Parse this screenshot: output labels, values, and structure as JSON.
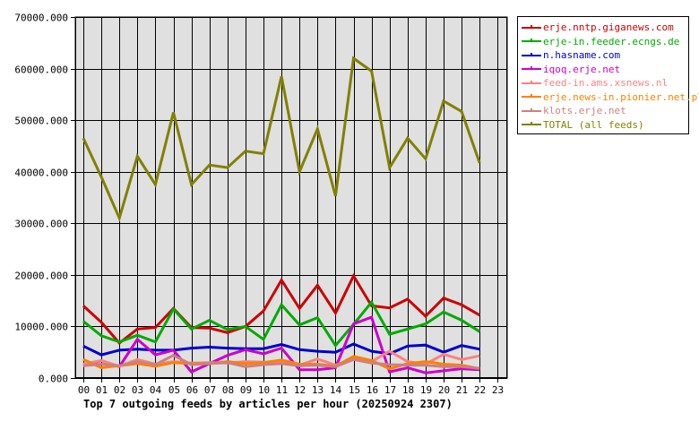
{
  "chart_data": {
    "type": "line",
    "title": "Top 7 outgoing feeds by articles per hour (20250924 2307)",
    "xlabel": "",
    "ylabel": "",
    "ylim": [
      0,
      70000
    ],
    "grid": true,
    "legend_position": "right",
    "y_ticks": [
      "0.000",
      "10000.000",
      "20000.000",
      "30000.000",
      "40000.000",
      "50000.000",
      "60000.000",
      "70000.000"
    ],
    "categories": [
      "00",
      "01",
      "02",
      "03",
      "04",
      "05",
      "06",
      "07",
      "08",
      "09",
      "10",
      "11",
      "12",
      "13",
      "14",
      "15",
      "16",
      "17",
      "18",
      "19",
      "20",
      "21",
      "22",
      "23"
    ],
    "series": [
      {
        "name": "erje.nntp.giganews.com",
        "color": "#cc0000",
        "values": [
          14000,
          10800,
          6800,
          9500,
          9800,
          13500,
          9800,
          9700,
          8800,
          10000,
          13000,
          19000,
          13500,
          18000,
          12600,
          19800,
          14000,
          13600,
          15300,
          12000,
          15500,
          14200,
          12200
        ]
      },
      {
        "name": "erje-in.feeder.ecngs.de",
        "color": "#00aa00",
        "values": [
          11000,
          8200,
          7000,
          8300,
          7000,
          13400,
          9500,
          11200,
          9400,
          10000,
          7500,
          14200,
          10300,
          11700,
          6300,
          10400,
          14700,
          8500,
          9500,
          10500,
          12800,
          11200,
          9000
        ]
      },
      {
        "name": "n.hasname.com",
        "color": "#0000cc",
        "values": [
          6200,
          4500,
          5400,
          5600,
          5400,
          5400,
          5800,
          6000,
          5800,
          5700,
          5700,
          6500,
          5500,
          5200,
          5000,
          6600,
          5200,
          4700,
          6200,
          6400,
          5000,
          6300,
          5600
        ]
      },
      {
        "name": "iqoq.erje.net",
        "color": "#cc00cc",
        "values": [
          2400,
          3400,
          2200,
          7500,
          4500,
          5400,
          1200,
          2800,
          4400,
          5500,
          4700,
          5800,
          1600,
          1600,
          2000,
          10500,
          11800,
          1200,
          2000,
          1000,
          1400,
          1800,
          1600
        ]
      },
      {
        "name": "feed-in.ams.xsnews.nl",
        "color": "#ff8080",
        "values": [
          2700,
          3400,
          2300,
          3600,
          2700,
          3200,
          2900,
          3000,
          2900,
          3200,
          3100,
          3100,
          2500,
          3700,
          2500,
          3700,
          3200,
          5200,
          3200,
          2700,
          4600,
          3600,
          4300
        ]
      },
      {
        "name": "erje.news-in.pionier.net.pl",
        "color": "#ff8000",
        "values": [
          3600,
          2000,
          2400,
          2800,
          2300,
          3000,
          2800,
          2800,
          3200,
          2800,
          3000,
          3500,
          2700,
          2700,
          2300,
          4200,
          3400,
          1800,
          2800,
          3200,
          2700,
          2500,
          1800
        ]
      },
      {
        "name": "klots.erje.net",
        "color": "#cc8080",
        "values": [
          2400,
          2700,
          2400,
          3200,
          2600,
          4400,
          2600,
          2800,
          3000,
          2200,
          2600,
          2800,
          2400,
          2500,
          2200,
          3600,
          2900,
          2600,
          2500,
          2500,
          2200,
          2200,
          1900
        ]
      },
      {
        "name": "TOTAL (all feeds)",
        "color": "#808000",
        "values": [
          46500,
          39000,
          31000,
          43000,
          37500,
          51500,
          37500,
          41300,
          40800,
          44000,
          43500,
          58500,
          40000,
          48300,
          35300,
          62000,
          59500,
          40800,
          46500,
          42500,
          53700,
          51700,
          41700
        ]
      }
    ]
  },
  "legend": {
    "items": [
      {
        "label": "erje.nntp.giganews.com",
        "color": "#cc0000"
      },
      {
        "label": "erje-in.feeder.ecngs.de",
        "color": "#00aa00"
      },
      {
        "label": "n.hasname.com",
        "color": "#0000cc"
      },
      {
        "label": "iqoq.erje.net",
        "color": "#cc00cc"
      },
      {
        "label": "feed-in.ams.xsnews.nl",
        "color": "#ff8080"
      },
      {
        "label": "erje.news-in.pionier.net.pl",
        "color": "#ff8000"
      },
      {
        "label": "klots.erje.net",
        "color": "#cc8080"
      },
      {
        "label": "TOTAL (all feeds)",
        "color": "#808000"
      }
    ]
  },
  "colors": {
    "plot_background": "#e0e0e0",
    "grid": "#000000",
    "page_background": "#ffffff"
  }
}
